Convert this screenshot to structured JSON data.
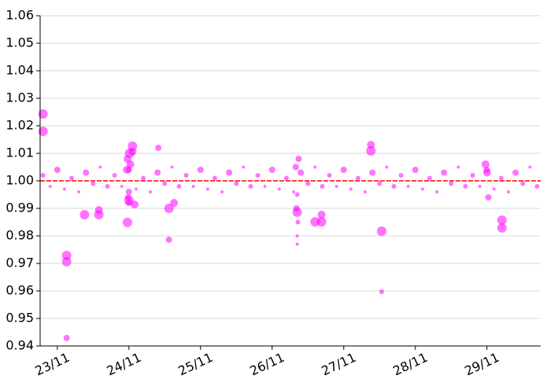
{
  "chart_data": {
    "type": "scatter",
    "x": [
      22.8,
      22.9,
      23.0,
      23.1,
      23.2,
      23.3,
      23.4,
      23.5,
      23.6,
      23.7,
      23.8,
      23.9,
      24.0,
      24.1,
      24.2,
      24.3,
      24.4,
      24.5,
      24.6,
      24.7,
      24.8,
      24.9,
      25.0,
      25.1,
      25.2,
      25.3,
      25.4,
      25.5,
      25.6,
      25.7,
      25.8,
      25.9,
      26.0,
      26.1,
      26.2,
      26.3,
      26.4,
      26.5,
      26.6,
      26.7,
      26.8,
      26.9,
      27.0,
      27.1,
      27.2,
      27.3,
      27.4,
      27.5,
      27.6,
      27.7,
      27.8,
      27.9,
      28.0,
      28.1,
      28.2,
      28.3,
      28.4,
      28.5,
      28.6,
      28.7,
      28.8,
      28.9,
      29.0,
      29.1,
      29.2,
      29.3,
      29.4,
      29.5,
      29.6,
      29.7,
      23.98,
      24.0,
      24.02,
      23.99,
      24.01,
      24.0,
      23.97,
      26.35,
      26.34,
      26.36,
      26.35,
      26.35,
      26.33,
      26.37,
      28.98,
      29.02,
      29.0,
      22.8,
      22.8,
      23.13,
      23.13,
      23.13,
      23.38,
      23.58,
      23.58,
      23.98,
      24.05,
      24.05,
      24.41,
      24.56,
      24.56,
      24.63,
      26.35,
      26.6,
      26.69,
      26.69,
      27.38,
      27.38,
      27.53,
      27.53,
      29.21,
      29.21,
      24.0,
      24.08
    ],
    "values": [
      1.002,
      0.998,
      1.004,
      0.997,
      1.001,
      0.996,
      1.003,
      0.999,
      1.005,
      0.998,
      1.002,
      0.998,
      1.004,
      0.997,
      1.001,
      0.996,
      1.003,
      0.999,
      1.005,
      0.998,
      1.002,
      0.998,
      1.004,
      0.997,
      1.001,
      0.996,
      1.003,
      0.999,
      1.005,
      0.998,
      1.002,
      0.998,
      1.004,
      0.997,
      1.001,
      0.996,
      1.003,
      0.999,
      1.005,
      0.998,
      1.002,
      0.998,
      1.004,
      0.997,
      1.001,
      0.996,
      1.003,
      0.999,
      1.005,
      0.998,
      1.002,
      0.998,
      1.004,
      0.997,
      1.001,
      0.996,
      1.003,
      0.999,
      1.005,
      0.998,
      1.002,
      0.998,
      1.004,
      0.997,
      1.001,
      0.996,
      1.003,
      0.999,
      1.005,
      0.998,
      1.008,
      0.992,
      1.006,
      0.994,
      1.01,
      0.996,
      1.004,
      0.995,
      0.99,
      0.985,
      0.98,
      0.977,
      1.005,
      1.008,
      1.006,
      0.994,
      1.003,
      1.0243,
      1.018,
      0.9729,
      0.9706,
      0.9429,
      0.9877,
      0.9877,
      0.9894,
      0.9849,
      1.0126,
      1.0106,
      1.012,
      0.99,
      0.9786,
      0.992,
      0.9886,
      0.9851,
      0.9851,
      0.9877,
      1.0131,
      1.0109,
      0.9817,
      0.9597,
      0.9857,
      0.9829,
      0.9929,
      0.9914
    ],
    "sizes": [
      3,
      2,
      4,
      2,
      3,
      2,
      4,
      3,
      2,
      3,
      3,
      2,
      4,
      2,
      3,
      2,
      4,
      3,
      2,
      3,
      3,
      2,
      4,
      2,
      3,
      2,
      4,
      3,
      2,
      3,
      3,
      2,
      4,
      2,
      3,
      2,
      4,
      3,
      2,
      3,
      3,
      2,
      4,
      2,
      3,
      2,
      4,
      3,
      2,
      3,
      3,
      2,
      4,
      2,
      3,
      2,
      4,
      3,
      2,
      3,
      3,
      2,
      4,
      2,
      3,
      2,
      4,
      3,
      2,
      3,
      5,
      4,
      5,
      4,
      6,
      4,
      5,
      3,
      4,
      3,
      2,
      2,
      4,
      4,
      5,
      4,
      5,
      6,
      6,
      6,
      6,
      4,
      6,
      6,
      5,
      6,
      6,
      5,
      4,
      6,
      4,
      5,
      6,
      6,
      6,
      5,
      5,
      6,
      6,
      3,
      6,
      6,
      6,
      5
    ],
    "color": "#ff00ff",
    "hline": 1,
    "hline_color": "#ff0000",
    "xlim": [
      22.76,
      29.75
    ],
    "xticks": [
      {
        "value": 23,
        "label": "23/11"
      },
      {
        "value": 24,
        "label": "24/11"
      },
      {
        "value": 25,
        "label": "25/11"
      },
      {
        "value": 26,
        "label": "26/11"
      },
      {
        "value": 27,
        "label": "27/11"
      },
      {
        "value": 28,
        "label": "28/11"
      },
      {
        "value": 29,
        "label": "29/11"
      }
    ],
    "ylim": [
      0.94,
      1.06
    ],
    "yticks": [
      0.94,
      0.95,
      0.96,
      0.97,
      0.98,
      0.99,
      {
        "value": 1,
        "label": "1.00"
      },
      1.01,
      1.02,
      1.03,
      1.04,
      1.05,
      1.06
    ],
    "grid": true
  }
}
